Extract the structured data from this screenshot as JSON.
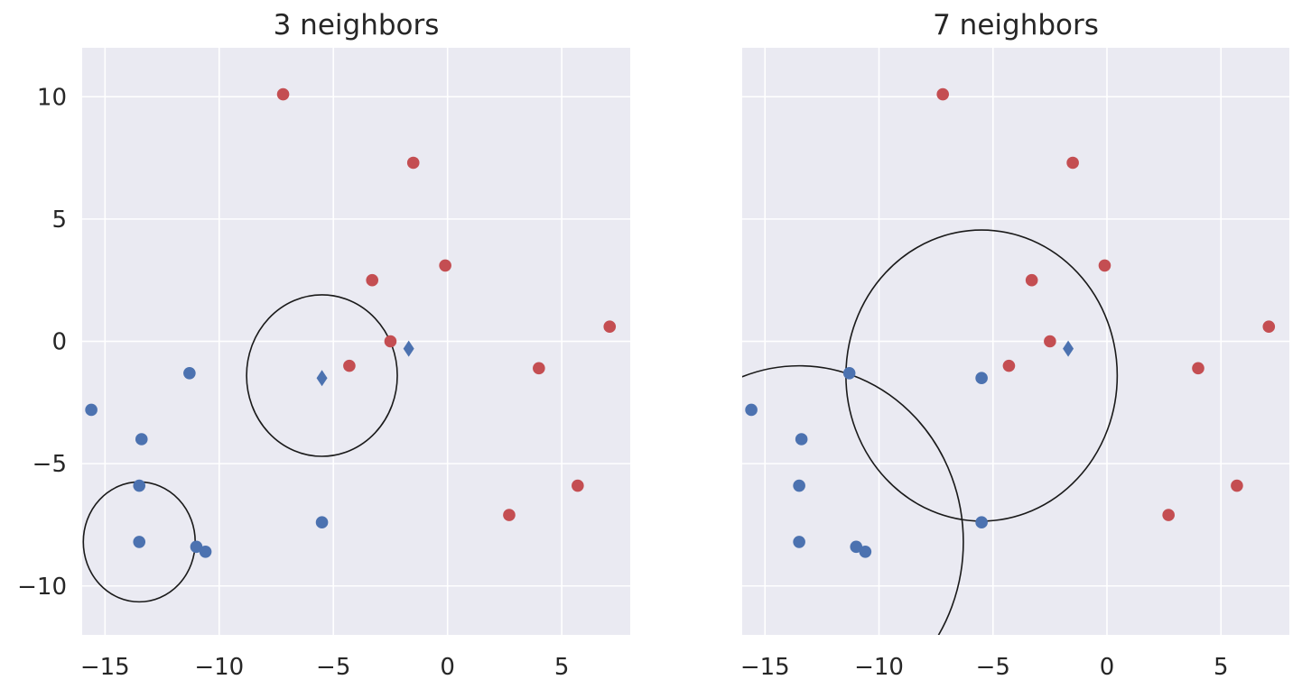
{
  "chart_data": [
    {
      "type": "scatter",
      "title": "3 neighbors",
      "xlim": [
        -16,
        8
      ],
      "ylim": [
        -12,
        12
      ],
      "xticks": [
        -15,
        -10,
        -5,
        0,
        5
      ],
      "xtick_labels": [
        "−15",
        "−10",
        "−5",
        "0",
        "5"
      ],
      "yticks": [
        -10,
        -5,
        0,
        5,
        10
      ],
      "ytick_labels": [
        "−10",
        "−5",
        "0",
        "5",
        "10"
      ],
      "grid": true,
      "series": [
        {
          "color": "#c44e52",
          "marker": "circle",
          "points": [
            [
              -7.2,
              10.1
            ],
            [
              -1.5,
              7.3
            ],
            [
              -3.3,
              2.5
            ],
            [
              -0.1,
              3.1
            ],
            [
              -2.5,
              0.0
            ],
            [
              -4.3,
              -1.0
            ],
            [
              4.0,
              -1.1
            ],
            [
              7.1,
              0.6
            ],
            [
              5.7,
              -5.9
            ],
            [
              2.7,
              -7.1
            ]
          ]
        },
        {
          "color": "#4c72b0",
          "marker": "circle",
          "points": [
            [
              -15.6,
              -2.8
            ],
            [
              -11.3,
              -1.3
            ],
            [
              -13.4,
              -4.0
            ],
            [
              -13.5,
              -5.9
            ],
            [
              -13.5,
              -8.2
            ],
            [
              -11.0,
              -8.4
            ],
            [
              -10.6,
              -8.6
            ],
            [
              -5.5,
              -7.4
            ]
          ]
        },
        {
          "color": "#4c72b0",
          "marker": "diamond",
          "points": [
            [
              -5.5,
              -1.5
            ],
            [
              -1.7,
              -0.3
            ]
          ]
        }
      ],
      "circles": [
        {
          "center": [
            -5.5,
            -1.4
          ],
          "radius": 3.3
        },
        {
          "center": [
            -13.5,
            -8.2
          ],
          "radius": 2.45
        }
      ]
    },
    {
      "type": "scatter",
      "title": "7 neighbors",
      "xlim": [
        -16,
        8
      ],
      "ylim": [
        -12,
        12
      ],
      "xticks": [
        -15,
        -10,
        -5,
        0,
        5
      ],
      "xtick_labels": [
        "−15",
        "−10",
        "−5",
        "0",
        "5"
      ],
      "yticks": [
        -10,
        -5,
        0,
        5,
        10
      ],
      "ytick_labels": [],
      "grid": true,
      "series": [
        {
          "color": "#c44e52",
          "marker": "circle",
          "points": [
            [
              -7.2,
              10.1
            ],
            [
              -1.5,
              7.3
            ],
            [
              -3.3,
              2.5
            ],
            [
              -0.1,
              3.1
            ],
            [
              -2.5,
              0.0
            ],
            [
              -4.3,
              -1.0
            ],
            [
              4.0,
              -1.1
            ],
            [
              7.1,
              0.6
            ],
            [
              5.7,
              -5.9
            ],
            [
              2.7,
              -7.1
            ]
          ]
        },
        {
          "color": "#4c72b0",
          "marker": "circle",
          "points": [
            [
              -15.6,
              -2.8
            ],
            [
              -11.3,
              -1.3
            ],
            [
              -13.4,
              -4.0
            ],
            [
              -13.5,
              -5.9
            ],
            [
              -13.5,
              -8.2
            ],
            [
              -11.0,
              -8.4
            ],
            [
              -10.6,
              -8.6
            ],
            [
              -5.5,
              -7.4
            ],
            [
              -5.5,
              -1.5
            ]
          ]
        },
        {
          "color": "#4c72b0",
          "marker": "diamond",
          "points": [
            [
              -1.7,
              -0.3
            ]
          ]
        }
      ],
      "circles": [
        {
          "center": [
            -5.5,
            -1.4
          ],
          "radius": 5.95
        },
        {
          "center": [
            -13.5,
            -8.2
          ],
          "radius": 7.2
        }
      ]
    }
  ]
}
